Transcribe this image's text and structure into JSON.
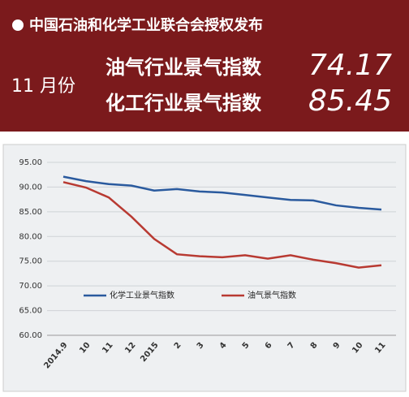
{
  "header": {
    "title": "中国石油和化学工业联合会授权发布",
    "month": "11 月份",
    "indices": [
      {
        "label": "油气行业景气指数",
        "value": "74.17"
      },
      {
        "label": "化工行业景气指数",
        "value": "85.45"
      }
    ]
  },
  "chart_data": {
    "type": "line",
    "categories": [
      "2014.9",
      "10",
      "11",
      "12",
      "2015",
      "2",
      "3",
      "4",
      "5",
      "6",
      "7",
      "8",
      "9",
      "10",
      "11"
    ],
    "series": [
      {
        "name": "化学工业景气指数",
        "color": "#2a5a9e",
        "values": [
          92.1,
          91.2,
          90.6,
          90.3,
          89.3,
          89.6,
          89.1,
          88.9,
          88.4,
          87.9,
          87.4,
          87.3,
          86.3,
          85.8,
          85.45
        ]
      },
      {
        "name": "油气景气指数",
        "color": "#b83a32",
        "values": [
          91.0,
          89.9,
          87.9,
          84.0,
          79.5,
          76.4,
          76.0,
          75.8,
          76.2,
          75.5,
          76.2,
          75.3,
          74.6,
          73.7,
          74.17
        ]
      }
    ],
    "ylim": [
      60,
      95
    ],
    "yticks": [
      {
        "value": 60,
        "label": "60.00"
      },
      {
        "value": 65,
        "label": "65.00"
      },
      {
        "value": 70,
        "label": "70.00"
      },
      {
        "value": 75,
        "label": "75.00"
      },
      {
        "value": 80,
        "label": "80.00"
      },
      {
        "value": 85,
        "label": "85.00"
      },
      {
        "value": 90,
        "label": "90.00"
      },
      {
        "value": 95,
        "label": "95.00"
      }
    ],
    "grid": true,
    "legend": "lower center"
  }
}
